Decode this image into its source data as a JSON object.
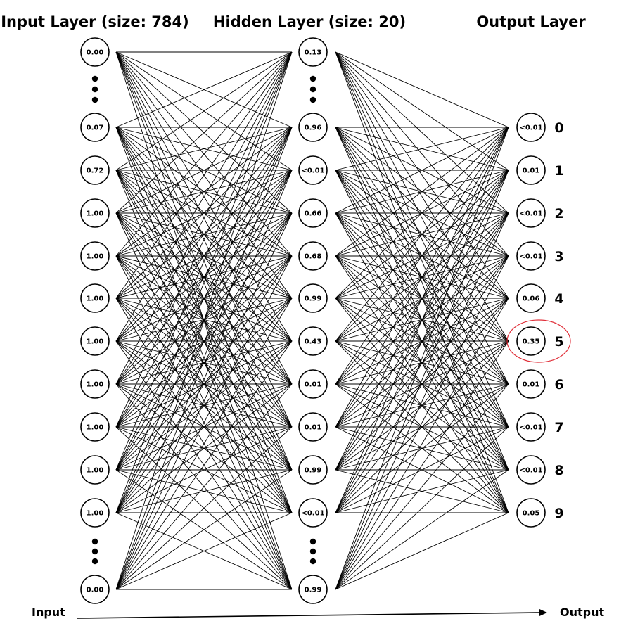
{
  "layers": [
    {
      "title": "Input Layer (size: 784)",
      "values": [
        "0.00",
        "0.07",
        "0.72",
        "1.00",
        "1.00",
        "1.00",
        "1.00",
        "1.00",
        "1.00",
        "1.00",
        "1.00",
        "0.00"
      ]
    },
    {
      "title": "Hidden Layer (size: 20)",
      "values": [
        "0.13",
        "0.96",
        "<0.01",
        "0.66",
        "0.68",
        "0.99",
        "0.43",
        "0.01",
        "0.01",
        "0.99",
        "<0.01",
        "0.99"
      ]
    },
    {
      "title": "Output Layer",
      "values": [
        "<0.01",
        "0.01",
        "<0.01",
        "<0.01",
        "0.06",
        "0.35",
        "0.01",
        "<0.01",
        "<0.01",
        "0.05"
      ]
    }
  ],
  "output_digits": [
    "0",
    "1",
    "2",
    "3",
    "4",
    "5",
    "6",
    "7",
    "8",
    "9"
  ],
  "highlighted_output": "5",
  "flow": {
    "input_label": "Input",
    "output_label": "Output"
  },
  "colors": {
    "highlight": "#e0303a",
    "stroke": "#000000"
  }
}
